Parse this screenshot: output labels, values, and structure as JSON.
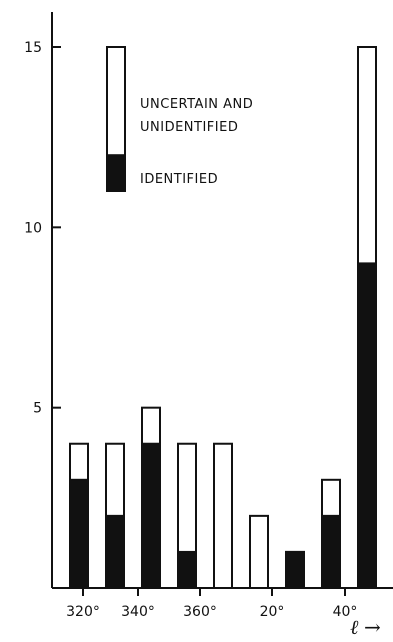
{
  "chart_data": {
    "type": "bar",
    "stacked": true,
    "title": "",
    "ylim": [
      0,
      15
    ],
    "yticks": [
      5,
      10,
      15
    ],
    "x_tick_labels": [
      "320°",
      "340°",
      "360°",
      "20°",
      "40°"
    ],
    "xlabel": "ℓ",
    "xlabel_arrow": "→",
    "series": [
      {
        "name": "UNCERTAIN AND UNIDENTIFIED",
        "color": "#ffffff",
        "values": [
          1,
          2,
          1,
          3,
          4,
          2,
          0,
          1,
          6
        ]
      },
      {
        "name": "IDENTIFIED",
        "color": "#111111",
        "values": [
          3,
          2,
          4,
          1,
          0,
          0,
          1,
          2,
          9
        ]
      }
    ],
    "totals": [
      4,
      4,
      5,
      4,
      4,
      2,
      1,
      3,
      15
    ],
    "legend": {
      "placement": "top-left",
      "uncertain_label_line1": "UNCERTAIN AND",
      "uncertain_label_line2": "UNIDENTIFIED",
      "identified_label": "IDENTIFIED",
      "sample_total": 15,
      "sample_identified": 12
    },
    "grid": false
  }
}
